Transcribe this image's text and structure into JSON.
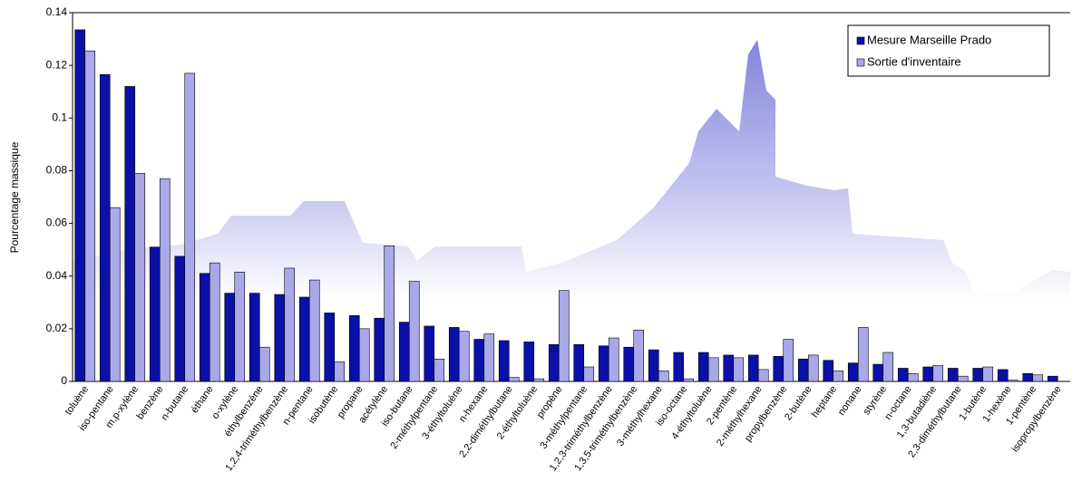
{
  "chart_data": {
    "type": "bar",
    "y_label": "Pourcentage massique",
    "categories": [
      "toluène",
      "iso-pentane",
      "m,p-xylène",
      "benzène",
      "n-butane",
      "éthane",
      "o-xylène",
      "éthylbenzène",
      "1,2,4-triméthylbenzène",
      "n-pentane",
      "isobutène",
      "propane",
      "acétylène",
      "iso-butane",
      "2-méthylpentane",
      "3-éthyltoluène",
      "n-hexane",
      "2,2-diméthylbutane",
      "2-éthyltoluène",
      "propène",
      "3-méthylpentane",
      "1,2,3-triméthylbenzène",
      "1,3,5-triméthylbenzène",
      "3-méthylhexane",
      "iso-octane",
      "4-éthyltoluène",
      "2-pentène",
      "2-méthylhexane",
      "propylbenzène",
      "2-butène",
      "heptane",
      "nonane",
      "styrène",
      "n-octane",
      "1,3-butadiène",
      "2,3-diméthylbutane",
      "1-butène",
      "1-hexène",
      "1-pentène",
      "isopropylbenzène"
    ],
    "series": [
      {
        "name": "Mesure Marseille Prado",
        "color": "#0a10a8",
        "values": [
          0.1335,
          0.1165,
          0.112,
          0.051,
          0.0475,
          0.041,
          0.0335,
          0.0335,
          0.033,
          0.032,
          0.026,
          0.025,
          0.024,
          0.0225,
          0.021,
          0.0205,
          0.016,
          0.0155,
          0.015,
          0.014,
          0.014,
          0.0135,
          0.013,
          0.012,
          0.011,
          0.011,
          0.01,
          0.01,
          0.0095,
          0.0085,
          0.008,
          0.007,
          0.0065,
          0.005,
          0.0055,
          0.005,
          0.005,
          0.0045,
          0.003,
          0.002
        ]
      },
      {
        "name": "Sortie d'inventaire",
        "color": "#a9a9e9",
        "values": [
          0.1255,
          0.066,
          0.079,
          0.077,
          0.117,
          0.045,
          0.0415,
          0.013,
          0.043,
          0.0385,
          0.0075,
          0.02,
          0.0515,
          0.038,
          0.0085,
          0.019,
          0.018,
          0.0015,
          0.001,
          0.0345,
          0.0055,
          0.0165,
          0.0195,
          0.004,
          0.001,
          0.009,
          0.009,
          0.0045,
          0.016,
          0.01,
          0.004,
          0.0205,
          0.011,
          0.003,
          0.006,
          0.002,
          0.0055,
          0.0005,
          0.0025,
          0.0
        ]
      }
    ],
    "ylim": [
      0,
      0.14
    ],
    "yticks": [
      0,
      0.02,
      0.04,
      0.06,
      0.08,
      0.1,
      0.12,
      0.14
    ],
    "grid": false,
    "legend": "top-right"
  }
}
